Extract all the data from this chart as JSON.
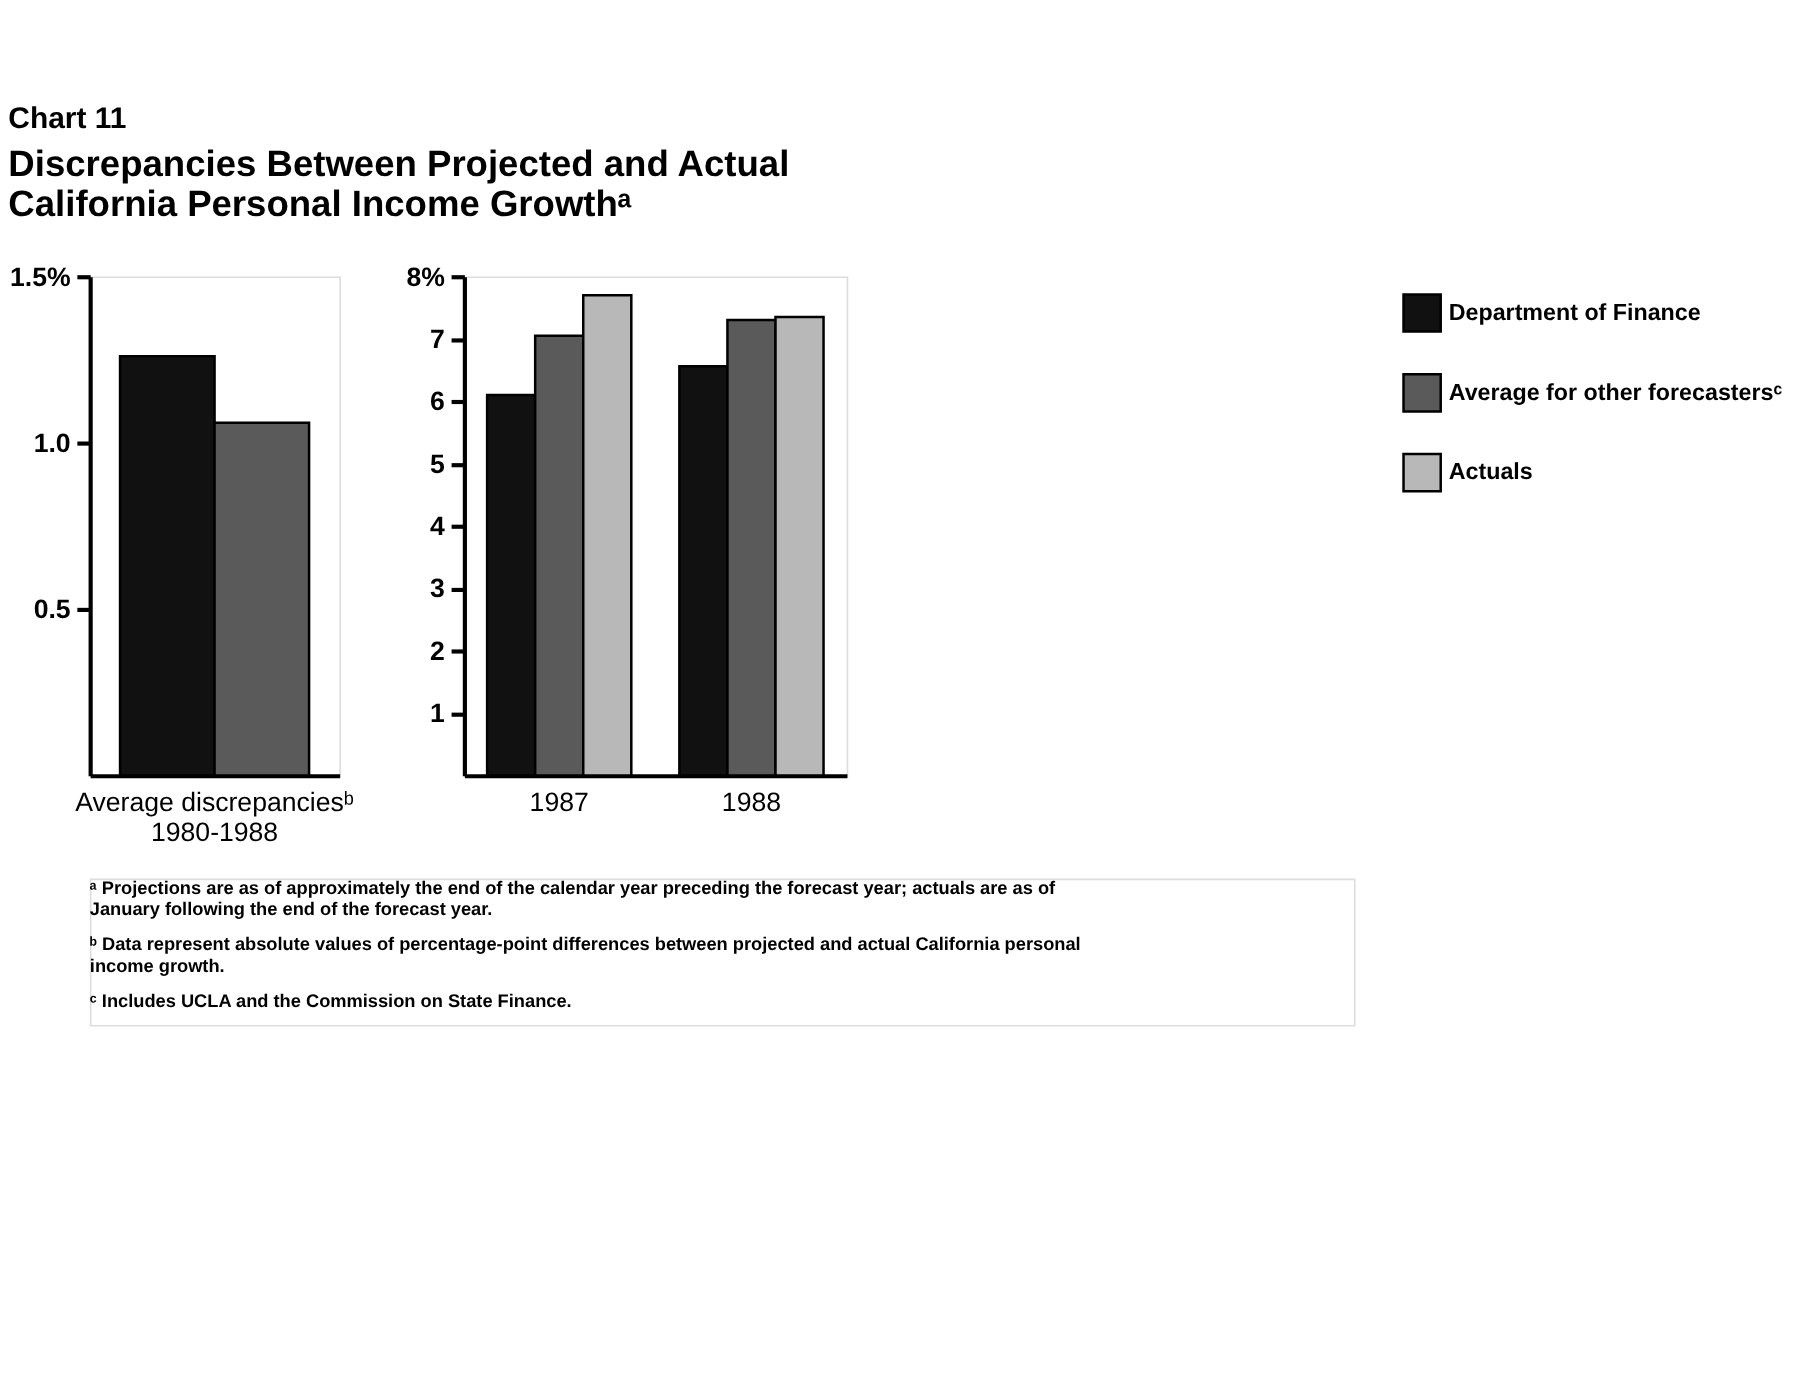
{
  "chart_data": [
    {
      "type": "bar",
      "title": "Chart 11",
      "subtitle": "Discrepancies Between Projected and Actual California Personal Income Growthᵃ",
      "categories": [
        "Average discrepanciesᵇ\n1980-1988"
      ],
      "series": [
        {
          "name": "Department of Finance",
          "color": "#111111",
          "values": [
            1.26
          ]
        },
        {
          "name": "Average for other forecastersᶜ",
          "color": "#5a5a5a",
          "values": [
            1.06
          ]
        }
      ],
      "ylim": [
        0,
        1.5
      ],
      "yticks": [
        0.5,
        {
          "value": 1,
          "label": "1.0"
        },
        {
          "value": 1.5,
          "label": "1.5%"
        }
      ],
      "grid": false,
      "legend": "right"
    },
    {
      "type": "bar",
      "categories": [
        "1987",
        "1988"
      ],
      "series": [
        {
          "name": "Department of Finance",
          "color": "#111111",
          "values": [
            6.1,
            6.56
          ]
        },
        {
          "name": "Average for other forecastersᶜ",
          "color": "#5a5a5a",
          "values": [
            7.05,
            7.3
          ]
        },
        {
          "name": "Actuals",
          "color": "#b8b8b8",
          "values": [
            7.7,
            7.35
          ]
        }
      ],
      "ylim": [
        0,
        8
      ],
      "yticks": [
        1,
        2,
        3,
        4,
        5,
        6,
        7,
        {
          "value": 8,
          "label": "8%"
        }
      ],
      "grid": false,
      "legend": "right",
      "annotations": [
        "ᵃ Projections are as of approximately the end of the calendar year preceding the forecast year; actuals are as of January following the end of the forecast year.",
        "ᵇ Data represent absolute values of percentage-point differences between projected and actual California personal income growth.",
        "ᶜ Includes UCLA and the Commission on State Finance."
      ]
    }
  ]
}
